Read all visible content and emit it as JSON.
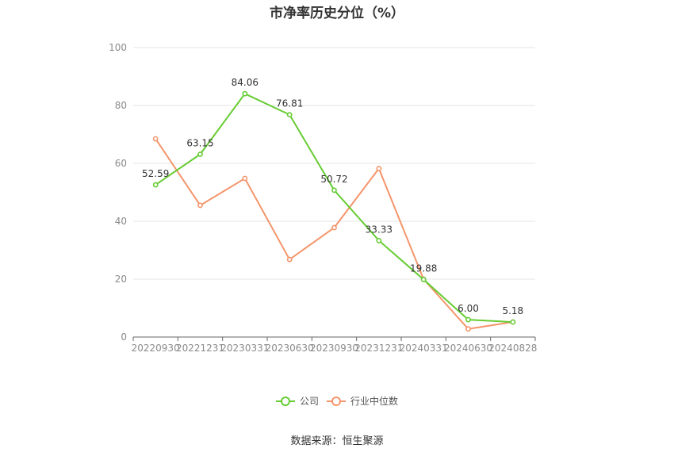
{
  "title": "市净率历史分位（%）",
  "source": "数据来源：恒生聚源",
  "colors": {
    "company": "#66cc33",
    "industry": "#f4956b"
  },
  "chart_data": {
    "type": "line",
    "title": "市净率历史分位（%）",
    "categories": [
      "20220930",
      "20221231",
      "20230331",
      "20230630",
      "20230930",
      "20231231",
      "20240331",
      "20240630",
      "20240828"
    ],
    "ylim": [
      0,
      100
    ],
    "yticks": [
      0,
      20,
      40,
      60,
      80,
      100
    ],
    "grid": true,
    "legend_position": "bottom",
    "series": [
      {
        "name": "公司",
        "values": [
          52.59,
          63.15,
          84.06,
          76.81,
          50.72,
          33.33,
          19.88,
          6.0,
          5.18
        ],
        "labels": [
          "52.59",
          "63.15",
          "84.06",
          "76.81",
          "50.72",
          "33.33",
          "19.88",
          "6.00",
          "5.18"
        ]
      },
      {
        "name": "行业中位数",
        "values": [
          68.5,
          45.5,
          54.8,
          26.8,
          37.8,
          58.2,
          20.0,
          2.8,
          5.2
        ]
      }
    ]
  }
}
